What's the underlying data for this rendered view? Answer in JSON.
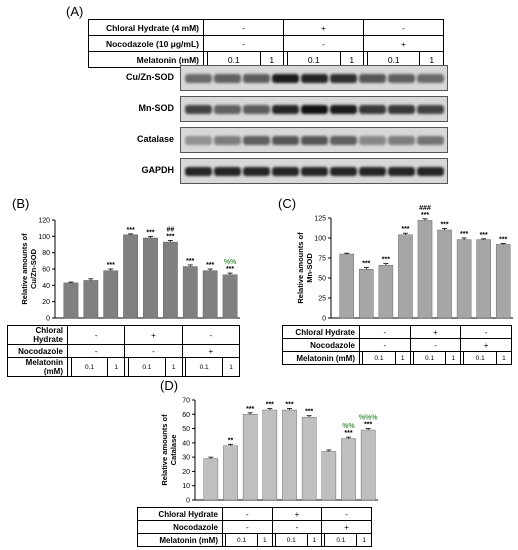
{
  "panels": {
    "a": "(A)",
    "b": "(B)",
    "c": "(C)",
    "d": "(D)"
  },
  "panel_a": {
    "conditions": {
      "rows": [
        {
          "label": "Chloral Hydrate  (4 mM)",
          "cells": [
            "-",
            "+",
            "-"
          ]
        },
        {
          "label": "Nocodazole  (10 μg/mL)",
          "cells": [
            "-",
            "-",
            "+"
          ]
        },
        {
          "label": "Melatonin  (mM)",
          "cells": [
            "",
            "0.1",
            "1",
            "",
            "0.1",
            "1",
            "",
            "0.1",
            "1"
          ]
        }
      ]
    },
    "blots": [
      "Cu/Zn-SOD",
      "Mn-SOD",
      "Catalase",
      "GAPDH"
    ],
    "band_intensity": {
      "Cu/Zn-SOD": [
        0.55,
        0.6,
        0.62,
        0.95,
        0.9,
        0.85,
        0.65,
        0.6,
        0.55
      ],
      "Mn-SOD": [
        0.75,
        0.6,
        0.62,
        0.9,
        1.0,
        0.95,
        0.8,
        0.8,
        0.75
      ],
      "Catalase": [
        0.35,
        0.45,
        0.6,
        0.65,
        0.65,
        0.6,
        0.4,
        0.45,
        0.5
      ],
      "GAPDH": [
        0.9,
        0.9,
        0.9,
        0.9,
        0.9,
        0.9,
        0.9,
        0.9,
        0.9
      ]
    }
  },
  "condition_table": {
    "chloral_label": "Chloral Hydrate",
    "nocodazole_label": "Nocodazole",
    "melatonin_label": "Melatonin (mM)",
    "chloral_signs": [
      "-",
      "+",
      "-"
    ],
    "nocodazole_signs": [
      "-",
      "-",
      "+"
    ],
    "melatonin_values": [
      "",
      "0.1",
      "1",
      "",
      "0.1",
      "1",
      "",
      "0.1",
      "1"
    ]
  },
  "chart_data": [
    {
      "type": "bar",
      "panel": "B",
      "ylabel": "Relative amounts of Cu/Zn-SOD",
      "ylabel_lines": [
        "Relative amounts of",
        "Cu/Zn-SOD"
      ],
      "ylim": [
        0,
        120
      ],
      "yticks": [
        0,
        20,
        40,
        60,
        80,
        100,
        120
      ],
      "bar_color": "#808080",
      "values": [
        43,
        46,
        58,
        102,
        98,
        93,
        63,
        58,
        53
      ],
      "errors": [
        1,
        2,
        2,
        1,
        2,
        2,
        2,
        2,
        2
      ],
      "annotations": [
        [],
        [],
        [
          "***"
        ],
        [
          "***"
        ],
        [
          "***"
        ],
        [
          "##",
          "***"
        ],
        [
          "***"
        ],
        [
          "***"
        ],
        [
          "%%",
          "***"
        ]
      ]
    },
    {
      "type": "bar",
      "panel": "C",
      "ylabel": "Relative amounts of Mn-SOD",
      "ylabel_lines": [
        "Relative amounts of",
        "Mn-SOD"
      ],
      "ylim": [
        0,
        125
      ],
      "yticks": [
        0,
        25,
        50,
        75,
        100,
        125
      ],
      "bar_color": "#a6a6a6",
      "values": [
        80,
        61,
        66,
        104,
        122,
        110,
        98,
        98,
        92
      ],
      "errors": [
        1,
        2,
        2,
        2,
        2,
        2,
        2,
        1,
        1
      ],
      "annotations": [
        [],
        [
          "***"
        ],
        [
          "***"
        ],
        [
          "***"
        ],
        [
          "###",
          "***"
        ],
        [
          "***"
        ],
        [
          "***"
        ],
        [
          "***"
        ],
        [
          "***"
        ]
      ]
    },
    {
      "type": "bar",
      "panel": "D",
      "ylabel": "Relative amounts of Catalase",
      "ylabel_lines": [
        "Relative amounts of",
        "Catalase"
      ],
      "ylim": [
        0,
        70
      ],
      "yticks": [
        0,
        10,
        20,
        30,
        40,
        50,
        60,
        70
      ],
      "bar_color": "#bfbfbf",
      "values": [
        29,
        38,
        60,
        63,
        63,
        58,
        34,
        43,
        49
      ],
      "errors": [
        1,
        1,
        1,
        1,
        1,
        1,
        1,
        1,
        1
      ],
      "annotations": [
        [],
        [
          "**"
        ],
        [
          "***"
        ],
        [
          "***"
        ],
        [
          "***"
        ],
        [
          "***"
        ],
        [],
        [
          "%%",
          "***"
        ],
        [
          "%%%",
          "***"
        ]
      ]
    }
  ],
  "colors": {
    "annotation_green": "#4a9a4a",
    "axis": "#000000"
  }
}
